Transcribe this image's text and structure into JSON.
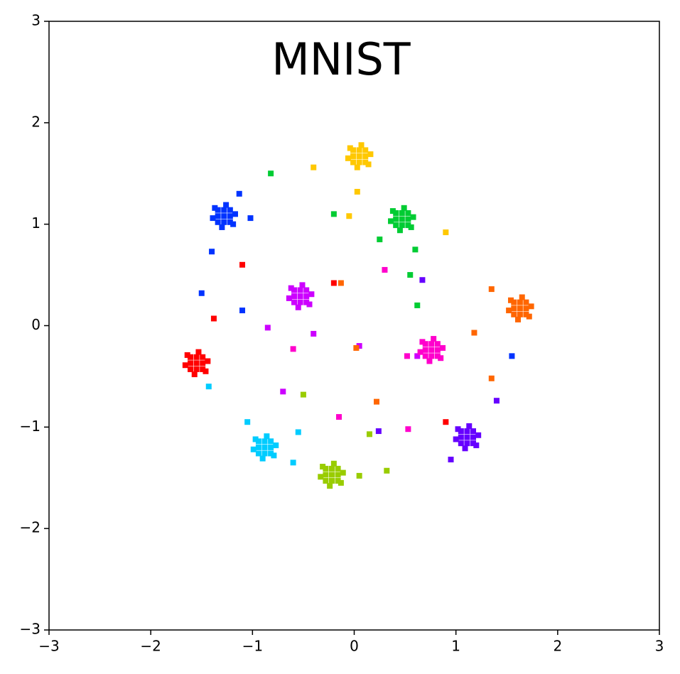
{
  "chart_data": {
    "type": "scatter",
    "title": "MNIST",
    "xlim": [
      -3,
      3
    ],
    "ylim": [
      -3,
      3
    ],
    "xticks": [
      {
        "value": -3,
        "label": "−3"
      },
      {
        "value": -2,
        "label": "−2"
      },
      {
        "value": -1,
        "label": "−1"
      },
      0,
      1,
      2,
      3
    ],
    "yticks": [
      {
        "value": -3,
        "label": "−3"
      },
      {
        "value": -2,
        "label": "−2"
      },
      {
        "value": -1,
        "label": "−1"
      },
      0,
      1,
      2,
      3
    ],
    "series": [
      {
        "color": "#ffc800",
        "x": [
          0.05,
          0.11,
          -0.01,
          0.05,
          0.05,
          0.11,
          -0.01,
          0.11,
          -0.01,
          0.16,
          -0.06,
          0.07,
          0.03,
          0.14,
          -0.04,
          -0.4,
          0.03,
          -0.05,
          0.9
        ],
        "y": [
          1.67,
          1.67,
          1.67,
          1.73,
          1.61,
          1.73,
          1.73,
          1.61,
          1.61,
          1.69,
          1.65,
          1.78,
          1.56,
          1.59,
          1.75,
          1.56,
          1.32,
          1.08,
          0.92
        ]
      },
      {
        "color": "#00cc33",
        "x": [
          0.47,
          0.53,
          0.41,
          0.47,
          0.47,
          0.53,
          0.41,
          0.53,
          0.41,
          0.58,
          0.36,
          0.49,
          0.45,
          0.56,
          0.38,
          -0.82,
          0.6,
          0.25,
          0.62,
          0.55,
          -0.2
        ],
        "y": [
          1.05,
          1.05,
          1.05,
          1.11,
          0.99,
          1.11,
          1.11,
          0.99,
          0.99,
          1.07,
          1.03,
          1.16,
          0.94,
          0.97,
          1.13,
          1.5,
          0.75,
          0.85,
          0.2,
          0.5,
          1.1
        ]
      },
      {
        "color": "#0033ff",
        "x": [
          -1.28,
          -1.22,
          -1.34,
          -1.28,
          -1.28,
          -1.22,
          -1.34,
          -1.22,
          -1.34,
          -1.17,
          -1.39,
          -1.26,
          -1.3,
          -1.19,
          -1.37,
          -1.4,
          -1.1,
          -1.5,
          -1.02,
          1.55,
          -1.13
        ],
        "y": [
          1.08,
          1.08,
          1.08,
          1.14,
          1.02,
          1.14,
          1.14,
          1.02,
          1.02,
          1.1,
          1.06,
          1.19,
          0.97,
          1.0,
          1.16,
          0.73,
          0.15,
          0.32,
          1.06,
          -0.3,
          1.3
        ]
      },
      {
        "color": "#cc00ff",
        "x": [
          -0.53,
          -0.47,
          -0.59,
          -0.53,
          -0.53,
          -0.47,
          -0.59,
          -0.47,
          -0.59,
          -0.42,
          -0.64,
          -0.51,
          -0.55,
          -0.44,
          -0.62,
          -0.85,
          -0.4,
          0.05,
          -0.7,
          0.62
        ],
        "y": [
          0.29,
          0.29,
          0.29,
          0.35,
          0.23,
          0.35,
          0.35,
          0.23,
          0.23,
          0.31,
          0.27,
          0.4,
          0.18,
          0.21,
          0.37,
          -0.02,
          -0.08,
          -0.2,
          -0.65,
          -0.3
        ]
      },
      {
        "color": "#ff6600",
        "x": [
          1.63,
          1.69,
          1.57,
          1.63,
          1.63,
          1.69,
          1.57,
          1.69,
          1.57,
          1.74,
          1.52,
          1.65,
          1.61,
          1.72,
          1.54,
          1.35,
          1.35,
          1.18,
          0.02,
          0.22,
          -0.13
        ],
        "y": [
          0.17,
          0.17,
          0.17,
          0.23,
          0.11,
          0.23,
          0.23,
          0.11,
          0.11,
          0.19,
          0.15,
          0.28,
          0.06,
          0.09,
          0.25,
          0.36,
          -0.52,
          -0.07,
          -0.22,
          -0.75,
          0.42
        ]
      },
      {
        "color": "#ff0000",
        "x": [
          -1.55,
          -1.49,
          -1.61,
          -1.55,
          -1.55,
          -1.49,
          -1.61,
          -1.49,
          -1.61,
          -1.44,
          -1.66,
          -1.53,
          -1.57,
          -1.46,
          -1.64,
          -1.38,
          -1.1,
          -0.2,
          0.9
        ],
        "y": [
          -0.37,
          -0.37,
          -0.37,
          -0.31,
          -0.43,
          -0.31,
          -0.31,
          -0.43,
          -0.43,
          -0.35,
          -0.39,
          -0.26,
          -0.48,
          -0.45,
          -0.29,
          0.07,
          0.6,
          0.42,
          -0.95
        ]
      },
      {
        "color": "#ff00cc",
        "x": [
          0.76,
          0.82,
          0.7,
          0.76,
          0.76,
          0.82,
          0.7,
          0.82,
          0.7,
          0.87,
          0.65,
          0.78,
          0.74,
          0.85,
          0.67,
          0.52,
          -0.15,
          0.53,
          -0.6,
          0.3
        ],
        "y": [
          -0.24,
          -0.24,
          -0.24,
          -0.18,
          -0.3,
          -0.18,
          -0.18,
          -0.3,
          -0.3,
          -0.22,
          -0.26,
          -0.13,
          -0.35,
          -0.32,
          -0.16,
          -0.3,
          -0.9,
          -1.02,
          -0.23,
          0.55
        ]
      },
      {
        "color": "#6600ff",
        "x": [
          1.11,
          1.17,
          1.05,
          1.11,
          1.11,
          1.17,
          1.05,
          1.17,
          1.05,
          1.22,
          1.0,
          1.13,
          1.09,
          1.2,
          1.02,
          1.4,
          0.95,
          0.24,
          0.67
        ],
        "y": [
          -1.1,
          -1.1,
          -1.1,
          -1.04,
          -1.16,
          -1.04,
          -1.04,
          -1.16,
          -1.16,
          -1.08,
          -1.12,
          -0.99,
          -1.21,
          -1.18,
          -1.02,
          -0.74,
          -1.32,
          -1.04,
          0.45
        ]
      },
      {
        "color": "#00ccff",
        "x": [
          -0.88,
          -0.82,
          -0.94,
          -0.88,
          -0.88,
          -0.82,
          -0.94,
          -0.82,
          -0.94,
          -0.77,
          -0.99,
          -0.86,
          -0.9,
          -0.79,
          -0.97,
          -0.55,
          -0.6,
          -1.05,
          -1.43
        ],
        "y": [
          -1.2,
          -1.2,
          -1.2,
          -1.14,
          -1.26,
          -1.14,
          -1.14,
          -1.26,
          -1.26,
          -1.18,
          -1.22,
          -1.09,
          -1.31,
          -1.28,
          -1.12,
          -1.05,
          -1.35,
          -0.95,
          -0.6
        ]
      },
      {
        "color": "#99cc00",
        "x": [
          -0.22,
          -0.16,
          -0.28,
          -0.22,
          -0.22,
          -0.16,
          -0.28,
          -0.16,
          -0.28,
          -0.11,
          -0.33,
          -0.2,
          -0.24,
          -0.13,
          -0.31,
          0.32,
          0.05,
          -0.5,
          0.15
        ],
        "y": [
          -1.47,
          -1.47,
          -1.47,
          -1.41,
          -1.53,
          -1.41,
          -1.41,
          -1.53,
          -1.53,
          -1.45,
          -1.49,
          -1.36,
          -1.58,
          -1.55,
          -1.39,
          -1.43,
          -1.48,
          -0.68,
          -1.07
        ]
      }
    ]
  }
}
